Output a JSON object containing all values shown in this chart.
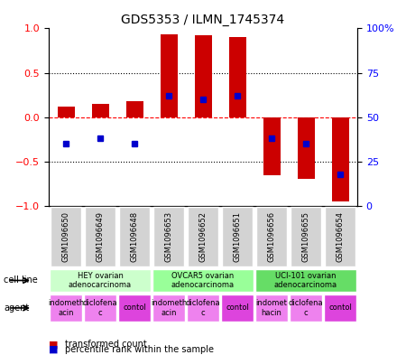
{
  "title": "GDS5353 / ILMN_1745374",
  "samples": [
    "GSM1096650",
    "GSM1096649",
    "GSM1096648",
    "GSM1096653",
    "GSM1096652",
    "GSM1096651",
    "GSM1096656",
    "GSM1096655",
    "GSM1096654"
  ],
  "transformed_count": [
    0.12,
    0.15,
    0.18,
    0.93,
    0.92,
    0.9,
    -0.65,
    -0.7,
    -0.95
  ],
  "percentile_rank": [
    0.35,
    0.38,
    0.35,
    0.62,
    0.6,
    0.62,
    0.38,
    0.35,
    0.18
  ],
  "cell_lines": [
    {
      "label": "HEY ovarian\nadenocarcinoma",
      "start": 0,
      "end": 3,
      "color": "#ccffcc"
    },
    {
      "label": "OVCAR5 ovarian\nadenocarcinoma",
      "start": 3,
      "end": 6,
      "color": "#99ff99"
    },
    {
      "label": "UCI-101 ovarian\nadenocarcinoma",
      "start": 6,
      "end": 9,
      "color": "#66dd66"
    }
  ],
  "agents": [
    {
      "label": "indometh\nacin",
      "start": 0,
      "end": 1,
      "color": "#ee82ee"
    },
    {
      "label": "diclofena\nc",
      "start": 1,
      "end": 2,
      "color": "#ee82ee"
    },
    {
      "label": "contol",
      "start": 2,
      "end": 3,
      "color": "#dd44dd"
    },
    {
      "label": "indometh\nacin",
      "start": 3,
      "end": 4,
      "color": "#ee82ee"
    },
    {
      "label": "diclofena\nc",
      "start": 4,
      "end": 5,
      "color": "#ee82ee"
    },
    {
      "label": "contol",
      "start": 5,
      "end": 6,
      "color": "#dd44dd"
    },
    {
      "label": "indomet\nhacin",
      "start": 6,
      "end": 7,
      "color": "#ee82ee"
    },
    {
      "label": "diclofena\nc",
      "start": 7,
      "end": 8,
      "color": "#ee82ee"
    },
    {
      "label": "contol",
      "start": 8,
      "end": 9,
      "color": "#dd44dd"
    }
  ],
  "bar_color": "#cc0000",
  "dot_color": "#0000cc",
  "ylim": [
    -1,
    1
  ],
  "y2lim": [
    0,
    100
  ],
  "yticks": [
    -1,
    -0.5,
    0,
    0.5,
    1
  ],
  "y2ticks": [
    0,
    25,
    50,
    75,
    100
  ],
  "y2ticklabels": [
    "0",
    "25",
    "50",
    "75",
    "100%"
  ],
  "hlines": [
    -0.5,
    0,
    0.5
  ],
  "hline_styles": [
    "dotted",
    "dashed",
    "dotted"
  ]
}
